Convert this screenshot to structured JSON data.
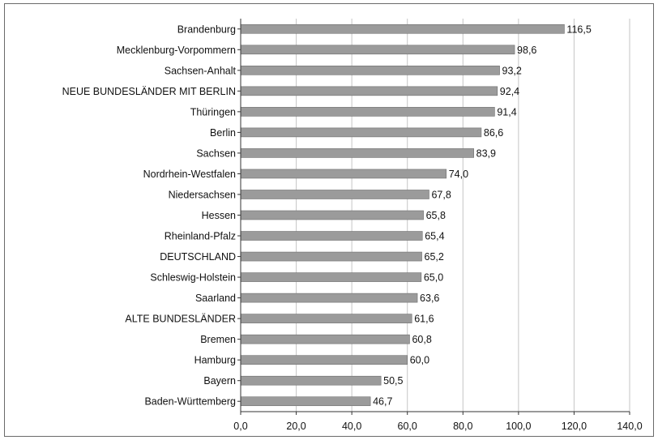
{
  "chart_data": {
    "type": "bar",
    "orientation": "horizontal",
    "categories": [
      "Brandenburg",
      "Mecklenburg-Vorpommern",
      "Sachsen-Anhalt",
      "NEUE BUNDESLÄNDER MIT BERLIN",
      "Thüringen",
      "Berlin",
      "Sachsen",
      "Nordrhein-Westfalen",
      "Niedersachsen",
      "Hessen",
      "Rheinland-Pfalz",
      "DEUTSCHLAND",
      "Schleswig-Holstein",
      "Saarland",
      "ALTE BUNDESLÄNDER",
      "Bremen",
      "Hamburg",
      "Bayern",
      "Baden-Württemberg"
    ],
    "values": [
      116.5,
      98.6,
      93.2,
      92.4,
      91.4,
      86.6,
      83.9,
      74.0,
      67.8,
      65.8,
      65.4,
      65.2,
      65.0,
      63.6,
      61.6,
      60.8,
      60.0,
      50.5,
      46.7
    ],
    "value_labels": [
      "116,5",
      "98,6",
      "93,2",
      "92,4",
      "91,4",
      "86,6",
      "83,9",
      "74,0",
      "67,8",
      "65,8",
      "65,4",
      "65,2",
      "65,0",
      "63,6",
      "61,6",
      "60,8",
      "60,0",
      "50,5",
      "46,7"
    ],
    "x_ticks": [
      0,
      20,
      40,
      60,
      80,
      100,
      120,
      140
    ],
    "x_tick_labels": [
      "0,0",
      "20,0",
      "40,0",
      "60,0",
      "80,0",
      "100,0",
      "120,0",
      "140,0"
    ],
    "xlim": [
      0,
      140
    ],
    "grid": "vertical",
    "legend": "none",
    "colors": {
      "bar": "#9b9b9b",
      "grid": "#c6c6c6",
      "axis": "#333333"
    }
  }
}
